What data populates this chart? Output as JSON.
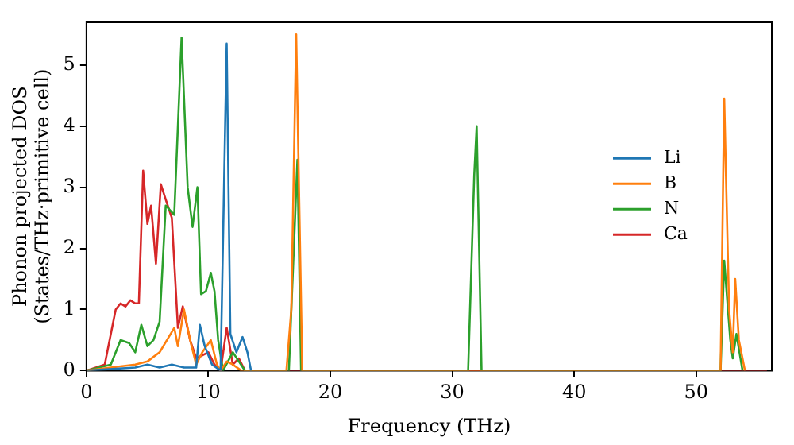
{
  "chart_data": {
    "type": "line",
    "xlabel": "Frequency (THz)",
    "ylabel": "Phonon projected DOS\n(States/THz·primitive cell)",
    "xlim": [
      0,
      56.2
    ],
    "ylim": [
      0,
      5.7
    ],
    "xticks": [
      0,
      10,
      20,
      30,
      40,
      50
    ],
    "yticks": [
      0,
      1,
      2,
      3,
      4,
      5
    ],
    "grid": false,
    "legend": "right",
    "marker": "none",
    "line_style": "solid",
    "series": [
      {
        "name": "Li",
        "color": "#1f77b4",
        "x": [
          0,
          4,
          5,
          6,
          7,
          8,
          9,
          9.3,
          9.7,
          10.3,
          11,
          11.5,
          11.8,
          12.3,
          12.8,
          13.2,
          13.5
        ],
        "values": [
          0,
          0.05,
          0.1,
          0.05,
          0.1,
          0.05,
          0.05,
          0.75,
          0.4,
          0.1,
          0,
          5.35,
          0.6,
          0.3,
          0.55,
          0.3,
          0
        ]
      },
      {
        "name": "B",
        "color": "#ff7f0e",
        "x": [
          0,
          2,
          4,
          5,
          6,
          7.2,
          7.5,
          8,
          8.5,
          9,
          9.5,
          10.2,
          10.7,
          11,
          11.5,
          12,
          12.7,
          16.4,
          16.8,
          17.2,
          17.7,
          52,
          52.3,
          52.7,
          53,
          53.2,
          53.5,
          54
        ],
        "values": [
          0,
          0.05,
          0.1,
          0.15,
          0.3,
          0.7,
          0.4,
          1.0,
          0.5,
          0.1,
          0.3,
          0.5,
          0.1,
          0,
          0.15,
          0.1,
          0,
          0,
          1.0,
          5.5,
          0,
          0,
          4.45,
          1.0,
          0.3,
          1.5,
          0.5,
          0
        ]
      },
      {
        "name": "N",
        "color": "#2ca02c",
        "x": [
          0,
          2,
          2.8,
          3.5,
          4,
          4.5,
          5,
          5.5,
          6,
          6.5,
          7.2,
          7.8,
          8.3,
          8.7,
          9.1,
          9.4,
          9.8,
          10.2,
          10.5,
          10.8,
          11.2,
          12,
          12.5,
          13,
          16.6,
          17.3,
          17.6,
          31.3,
          31.8,
          32,
          32.4,
          52,
          52.3,
          52.8,
          53,
          53.3,
          53.8
        ],
        "values": [
          0,
          0.1,
          0.5,
          0.45,
          0.3,
          0.75,
          0.4,
          0.5,
          0.8,
          2.7,
          2.55,
          5.45,
          3.0,
          2.35,
          3.0,
          1.25,
          1.3,
          1.6,
          1.3,
          0.5,
          0,
          0.3,
          0.15,
          0,
          0,
          3.45,
          0,
          0,
          3.2,
          4.0,
          0,
          0,
          1.8,
          0.5,
          0.2,
          0.6,
          0
        ]
      },
      {
        "name": "Ca",
        "color": "#d62728",
        "x": [
          0,
          1.5,
          2.4,
          2.8,
          3.2,
          3.6,
          4.0,
          4.3,
          4.65,
          5.0,
          5.3,
          5.7,
          6.1,
          6.5,
          7.0,
          7.5,
          7.9,
          8.5,
          9,
          10,
          10.5,
          11,
          11.5,
          12,
          12.5,
          13,
          55.8
        ],
        "values": [
          0,
          0.1,
          1.0,
          1.1,
          1.05,
          1.15,
          1.1,
          1.1,
          3.27,
          2.4,
          2.7,
          1.75,
          3.05,
          2.8,
          2.5,
          0.7,
          1.05,
          0.5,
          0.2,
          0.3,
          0.1,
          0,
          0.7,
          0.1,
          0.2,
          0,
          0
        ]
      }
    ]
  }
}
